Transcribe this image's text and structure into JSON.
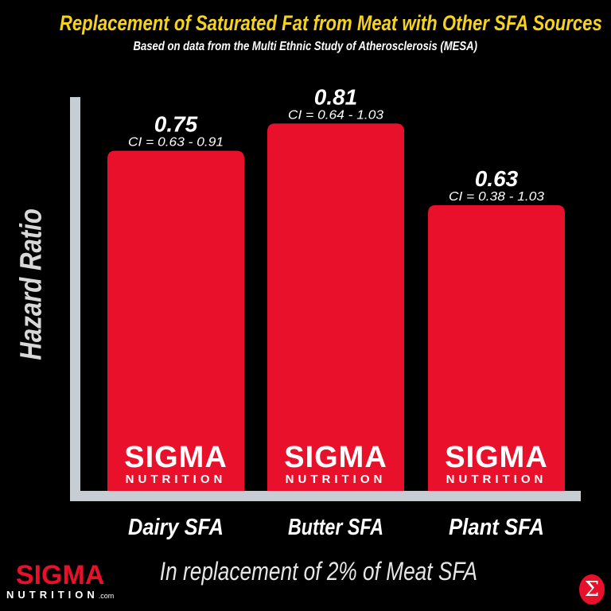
{
  "chart_data": {
    "type": "bar",
    "title": "Replacement of Saturated Fat from Meat with Other SFA Sources",
    "subtitle": "Based on data from the Multi Ethnic Study of Atherosclerosis (MESA)",
    "xlabel": "In replacement of 2% of Meat SFA",
    "ylabel": "Hazard Ratio",
    "categories": [
      "Dairy SFA",
      "Butter SFA",
      "Plant SFA"
    ],
    "values": [
      0.75,
      0.81,
      0.63
    ],
    "value_labels": [
      "0.75",
      "0.81",
      "0.63"
    ],
    "ci_labels": [
      "CI = 0.63 - 0.91",
      "CI = 0.64 - 1.03",
      "CI = 0.38 - 1.03"
    ],
    "ylim": [
      0,
      0.9
    ],
    "grid": false,
    "bar_color": "#e8102a",
    "axis_color": "#c8cdd3"
  },
  "watermark": {
    "brand": "SIGMA",
    "sub": "NUTRITION"
  },
  "footer": {
    "brand": "SIGMA",
    "sub": "NUTRITION",
    "domain": ".com",
    "badge": "Σ"
  }
}
